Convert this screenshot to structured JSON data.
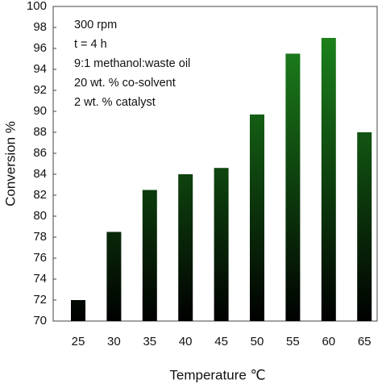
{
  "chart_data": {
    "type": "bar",
    "x_label": "Temperature ℃",
    "y_label": "Conversion %",
    "annotations": [
      "300 rpm",
      "t = 4 h",
      "9:1 methanol:waste oil",
      "20 wt. % co-solvent",
      "2 wt. % catalyst"
    ],
    "categories": [
      "25",
      "30",
      "35",
      "40",
      "45",
      "50",
      "55",
      "60",
      "65"
    ],
    "values": [
      72,
      78.5,
      82.5,
      84,
      84.6,
      89.7,
      95.5,
      97,
      88
    ],
    "color": "#1f8f1f",
    "ylim": [
      70,
      100
    ],
    "yticks": [
      70,
      72,
      74,
      76,
      78,
      80,
      82,
      84,
      86,
      88,
      90,
      92,
      94,
      96,
      98,
      100
    ]
  }
}
